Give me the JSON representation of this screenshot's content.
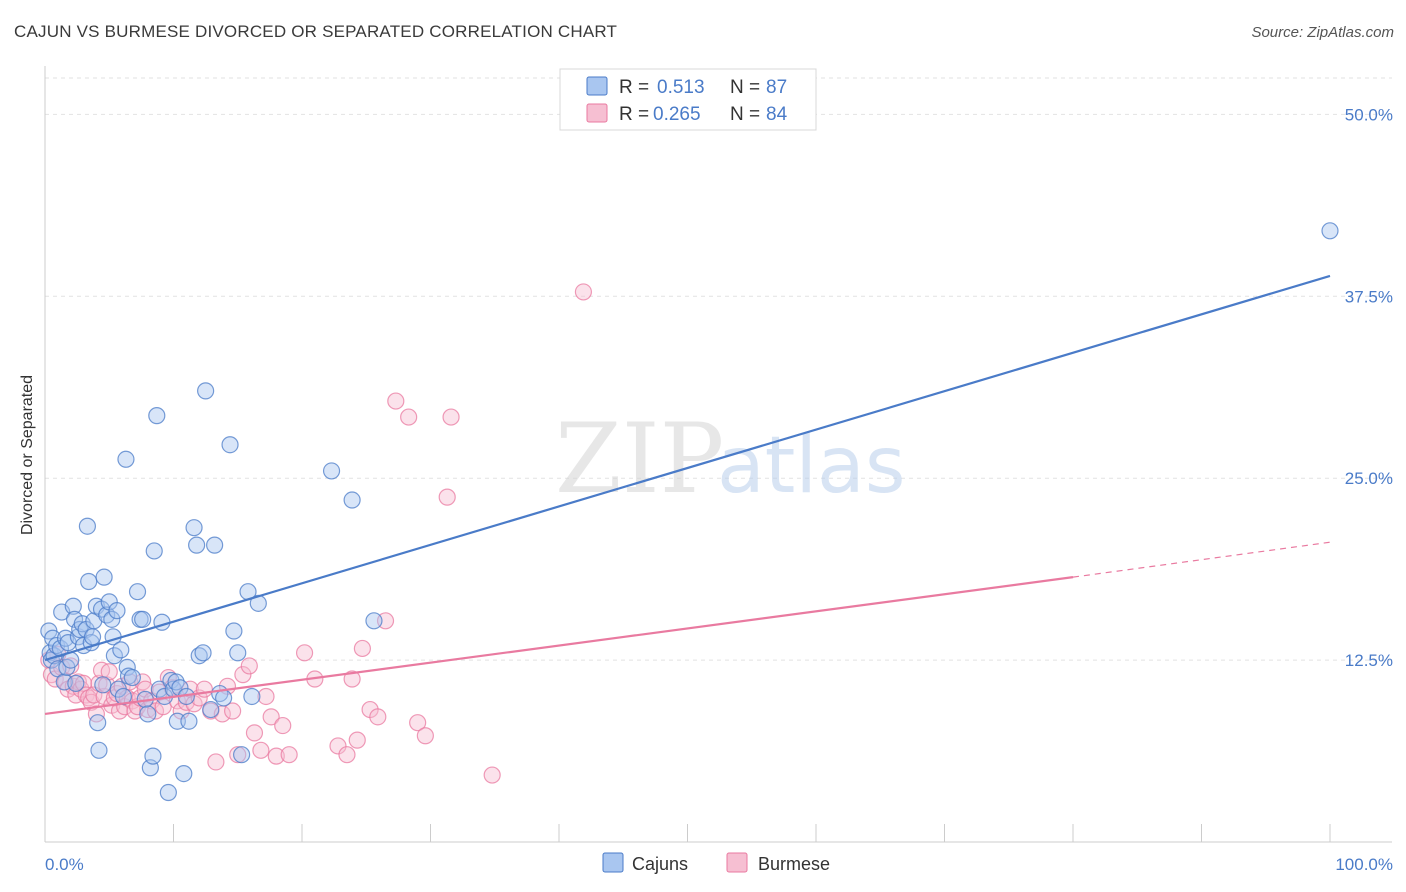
{
  "title": "CAJUN VS BURMESE DIVORCED OR SEPARATED CORRELATION CHART",
  "source": "Source: ZipAtlas.com",
  "watermark": {
    "zip": "ZIP",
    "atlas": "atlas"
  },
  "colors": {
    "cajuns": "#4a7bc8",
    "burmese": "#e97aa0",
    "cajuns_fill": "#a9c6f0",
    "burmese_fill": "#f6bfd2"
  },
  "legend": {
    "rows": [
      {
        "r_label": "R =",
        "r_value": "0.513",
        "n_label": "N =",
        "n_value": "87"
      },
      {
        "r_label": "R =",
        "r_value": "0.265",
        "n_label": "N =",
        "n_value": "84"
      }
    ]
  },
  "chart_data": {
    "type": "scatter",
    "title": "CAJUN VS BURMESE DIVORCED OR SEPARATED CORRELATION CHART",
    "xlabel": "",
    "ylabel": "Divorced or Separated",
    "xlim": [
      0,
      100
    ],
    "ylim": [
      0,
      52.5
    ],
    "x_tick_labels": [
      "0.0%",
      "100.0%"
    ],
    "y_ticks": [
      12.5,
      25.0,
      37.5,
      50.0
    ],
    "y_tick_labels": [
      "12.5%",
      "25.0%",
      "37.5%",
      "50.0%"
    ],
    "grid": true,
    "legend_position": "top-center",
    "series": [
      {
        "name": "Cajuns",
        "r": 0.513,
        "n": 87,
        "trend": {
          "x": [
            0,
            100
          ],
          "y": [
            12.5,
            38.9
          ]
        },
        "points": [
          [
            0.3,
            14.5
          ],
          [
            0.4,
            13.0
          ],
          [
            0.5,
            12.5
          ],
          [
            0.6,
            14.0
          ],
          [
            0.7,
            12.8
          ],
          [
            0.9,
            13.5
          ],
          [
            1.0,
            11.9
          ],
          [
            1.2,
            13.3
          ],
          [
            1.3,
            15.8
          ],
          [
            1.5,
            11.0
          ],
          [
            1.6,
            14.0
          ],
          [
            1.7,
            12.0
          ],
          [
            1.8,
            13.7
          ],
          [
            2.0,
            12.5
          ],
          [
            2.2,
            16.2
          ],
          [
            2.3,
            15.3
          ],
          [
            2.4,
            10.9
          ],
          [
            2.6,
            14.1
          ],
          [
            2.7,
            14.6
          ],
          [
            2.9,
            15.0
          ],
          [
            3.0,
            13.5
          ],
          [
            3.2,
            14.6
          ],
          [
            3.3,
            21.7
          ],
          [
            3.4,
            17.9
          ],
          [
            3.6,
            13.7
          ],
          [
            3.7,
            14.1
          ],
          [
            3.8,
            15.2
          ],
          [
            4.0,
            16.2
          ],
          [
            4.1,
            8.2
          ],
          [
            4.2,
            6.3
          ],
          [
            4.4,
            16.0
          ],
          [
            4.5,
            10.8
          ],
          [
            4.6,
            18.2
          ],
          [
            4.8,
            15.6
          ],
          [
            5.0,
            16.5
          ],
          [
            5.2,
            15.3
          ],
          [
            5.3,
            14.1
          ],
          [
            5.4,
            12.8
          ],
          [
            5.6,
            15.9
          ],
          [
            5.7,
            10.5
          ],
          [
            5.9,
            13.2
          ],
          [
            6.1,
            10.0
          ],
          [
            6.3,
            26.3
          ],
          [
            6.4,
            12.0
          ],
          [
            6.5,
            11.4
          ],
          [
            6.8,
            11.3
          ],
          [
            7.2,
            17.2
          ],
          [
            7.4,
            15.3
          ],
          [
            7.6,
            15.3
          ],
          [
            7.8,
            9.8
          ],
          [
            8.0,
            8.8
          ],
          [
            8.2,
            5.1
          ],
          [
            8.4,
            5.9
          ],
          [
            8.5,
            20.0
          ],
          [
            8.7,
            29.3
          ],
          [
            8.9,
            10.5
          ],
          [
            9.1,
            15.1
          ],
          [
            9.3,
            10.0
          ],
          [
            9.6,
            3.4
          ],
          [
            9.8,
            11.1
          ],
          [
            10.0,
            10.5
          ],
          [
            10.2,
            11.0
          ],
          [
            10.3,
            8.3
          ],
          [
            10.5,
            10.6
          ],
          [
            10.8,
            4.7
          ],
          [
            11.0,
            10.0
          ],
          [
            11.2,
            8.3
          ],
          [
            11.6,
            21.6
          ],
          [
            11.8,
            20.4
          ],
          [
            12.0,
            12.8
          ],
          [
            12.3,
            13.0
          ],
          [
            12.5,
            31.0
          ],
          [
            12.9,
            9.1
          ],
          [
            13.2,
            20.4
          ],
          [
            13.6,
            10.2
          ],
          [
            13.9,
            9.9
          ],
          [
            14.4,
            27.3
          ],
          [
            14.7,
            14.5
          ],
          [
            15.0,
            13.0
          ],
          [
            15.3,
            6.0
          ],
          [
            15.8,
            17.2
          ],
          [
            16.1,
            10.0
          ],
          [
            16.6,
            16.4
          ],
          [
            22.3,
            25.5
          ],
          [
            23.9,
            23.5
          ],
          [
            25.6,
            15.2
          ],
          [
            100.0,
            42.0
          ]
        ]
      },
      {
        "name": "Burmese",
        "r": 0.265,
        "n": 84,
        "trend": {
          "x": [
            0,
            80
          ],
          "y": [
            8.8,
            18.2
          ]
        },
        "trend_extension": {
          "x": [
            80,
            100
          ],
          "y": [
            18.2,
            20.6
          ]
        },
        "points": [
          [
            0.3,
            12.5
          ],
          [
            0.5,
            11.5
          ],
          [
            0.8,
            11.2
          ],
          [
            1.0,
            12.9
          ],
          [
            1.3,
            12.0
          ],
          [
            1.6,
            11.0
          ],
          [
            1.8,
            10.5
          ],
          [
            2.0,
            12.1
          ],
          [
            2.2,
            10.7
          ],
          [
            2.4,
            10.1
          ],
          [
            2.6,
            11.0
          ],
          [
            2.8,
            10.5
          ],
          [
            3.0,
            10.9
          ],
          [
            3.2,
            10.1
          ],
          [
            3.4,
            9.9
          ],
          [
            3.6,
            9.6
          ],
          [
            3.8,
            10.1
          ],
          [
            4.0,
            8.8
          ],
          [
            4.2,
            10.9
          ],
          [
            4.4,
            11.8
          ],
          [
            4.6,
            10.0
          ],
          [
            4.8,
            10.8
          ],
          [
            5.0,
            11.7
          ],
          [
            5.2,
            9.4
          ],
          [
            5.4,
            9.9
          ],
          [
            5.6,
            10.2
          ],
          [
            5.8,
            9.0
          ],
          [
            6.0,
            10.7
          ],
          [
            6.2,
            9.3
          ],
          [
            6.4,
            9.9
          ],
          [
            6.6,
            11.0
          ],
          [
            6.8,
            9.7
          ],
          [
            7.0,
            9.0
          ],
          [
            7.2,
            9.3
          ],
          [
            7.4,
            9.9
          ],
          [
            7.6,
            11.0
          ],
          [
            7.8,
            10.5
          ],
          [
            8.0,
            9.1
          ],
          [
            8.3,
            9.7
          ],
          [
            8.6,
            9.0
          ],
          [
            8.9,
            10.3
          ],
          [
            9.2,
            9.3
          ],
          [
            9.6,
            11.3
          ],
          [
            9.9,
            10.6
          ],
          [
            10.3,
            9.7
          ],
          [
            10.6,
            9.0
          ],
          [
            11.0,
            9.6
          ],
          [
            11.3,
            10.5
          ],
          [
            11.6,
            9.5
          ],
          [
            12.0,
            9.9
          ],
          [
            12.4,
            10.5
          ],
          [
            12.9,
            9.0
          ],
          [
            13.3,
            5.5
          ],
          [
            13.8,
            8.8
          ],
          [
            14.2,
            10.7
          ],
          [
            14.6,
            9.0
          ],
          [
            15.0,
            6.0
          ],
          [
            15.4,
            11.5
          ],
          [
            15.9,
            12.1
          ],
          [
            16.3,
            7.5
          ],
          [
            16.8,
            6.3
          ],
          [
            17.2,
            10.0
          ],
          [
            17.6,
            8.6
          ],
          [
            18.0,
            5.9
          ],
          [
            18.5,
            8.0
          ],
          [
            19.0,
            6.0
          ],
          [
            20.2,
            13.0
          ],
          [
            21.0,
            11.2
          ],
          [
            22.8,
            6.6
          ],
          [
            23.5,
            6.0
          ],
          [
            23.9,
            11.2
          ],
          [
            24.3,
            7.0
          ],
          [
            24.7,
            13.3
          ],
          [
            25.3,
            9.1
          ],
          [
            25.9,
            8.6
          ],
          [
            26.5,
            15.2
          ],
          [
            27.3,
            30.3
          ],
          [
            28.3,
            29.2
          ],
          [
            29.0,
            8.2
          ],
          [
            29.6,
            7.3
          ],
          [
            31.3,
            23.7
          ],
          [
            31.6,
            29.2
          ],
          [
            34.8,
            4.6
          ],
          [
            41.9,
            37.8
          ]
        ]
      }
    ]
  },
  "bottom_legend": [
    {
      "label": "Cajuns"
    },
    {
      "label": "Burmese"
    }
  ]
}
